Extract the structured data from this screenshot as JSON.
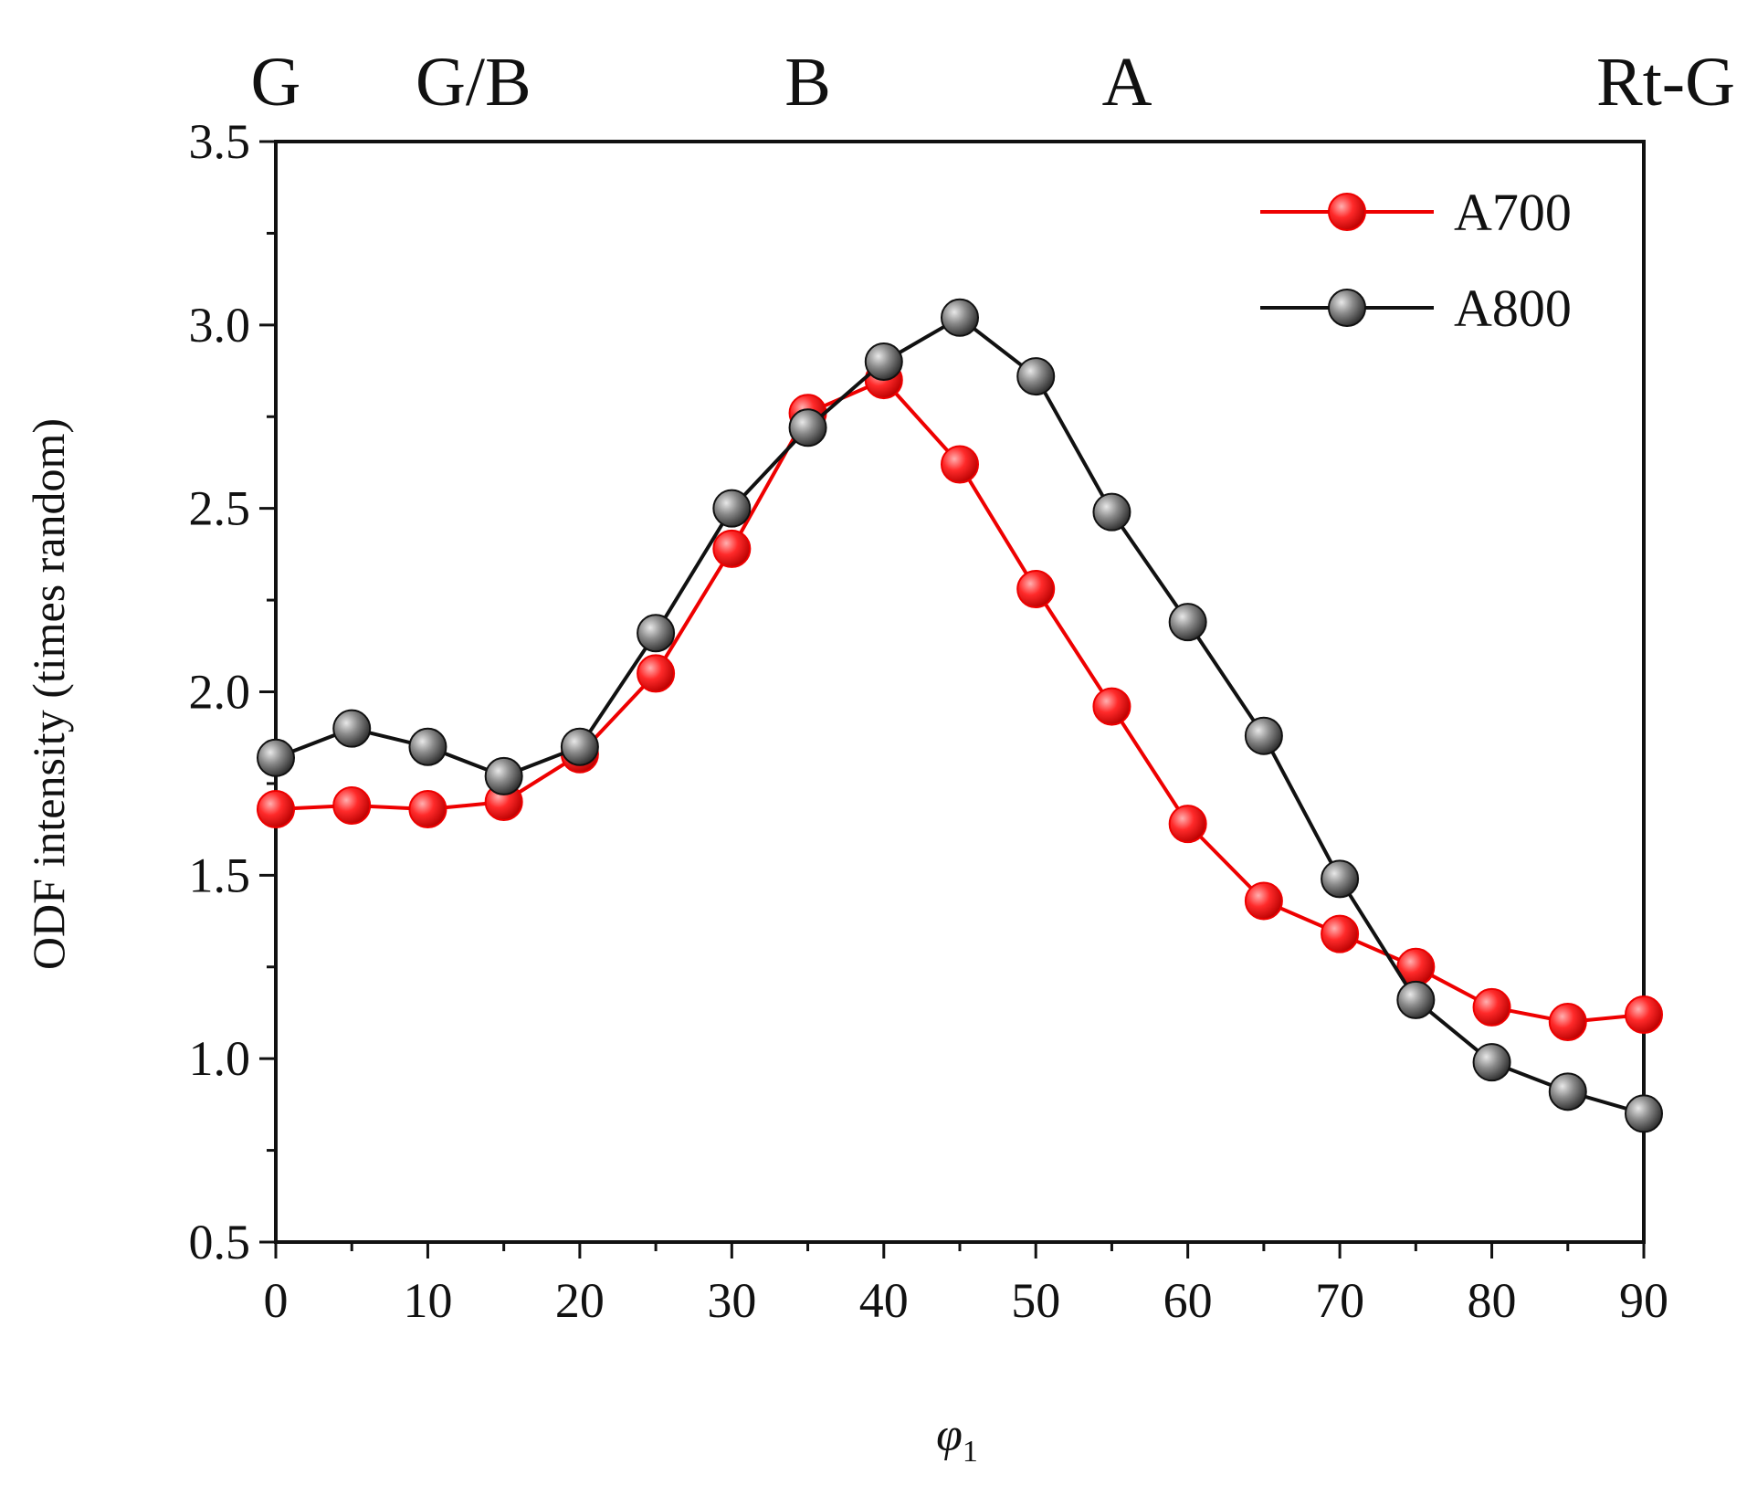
{
  "chart_data": {
    "type": "line",
    "title": "",
    "xlabel": "φ",
    "xlabel_subscript": "1",
    "ylabel": "ODF intensity (times random)",
    "xlim": [
      0,
      90
    ],
    "ylim": [
      0.5,
      3.5
    ],
    "x_ticks": [
      0,
      10,
      20,
      30,
      40,
      50,
      60,
      70,
      80,
      90
    ],
    "x_tick_labels": [
      "0",
      "10",
      "20",
      "30",
      "40",
      "50",
      "60",
      "70",
      "80",
      "90"
    ],
    "y_ticks": [
      0.5,
      1.0,
      1.5,
      2.0,
      2.5,
      3.0,
      3.5
    ],
    "y_tick_labels": [
      "0.5",
      "1.0",
      "1.5",
      "2.0",
      "2.5",
      "3.0",
      "3.5"
    ],
    "top_annotations": [
      {
        "label": "G",
        "x": 0
      },
      {
        "label": "G/B",
        "x": 13
      },
      {
        "label": "B",
        "x": 35
      },
      {
        "label": "A",
        "x": 56
      },
      {
        "label": "Rt-G",
        "x": 89
      }
    ],
    "legend_position": "top-right",
    "grid": false,
    "x": [
      0,
      5,
      10,
      15,
      20,
      25,
      30,
      35,
      40,
      45,
      50,
      55,
      60,
      65,
      70,
      75,
      80,
      85,
      90
    ],
    "series": [
      {
        "name": "A700",
        "color": "#ee0000",
        "values": [
          1.68,
          1.69,
          1.68,
          1.7,
          1.83,
          2.05,
          2.39,
          2.76,
          2.85,
          2.62,
          2.28,
          1.96,
          1.64,
          1.43,
          1.34,
          1.25,
          1.14,
          1.1,
          1.12
        ]
      },
      {
        "name": "A800",
        "color": "#111111",
        "values": [
          1.82,
          1.9,
          1.85,
          1.77,
          1.85,
          2.16,
          2.5,
          2.72,
          2.9,
          3.02,
          2.86,
          2.49,
          2.19,
          1.88,
          1.49,
          1.16,
          0.99,
          0.91,
          0.85
        ]
      }
    ]
  }
}
